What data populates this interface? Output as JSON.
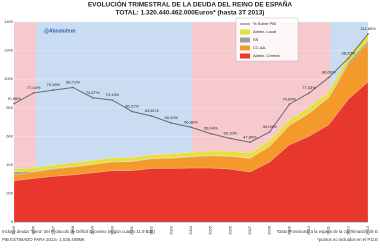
{
  "chart_data": {
    "type": "stacked-area",
    "title": "EVOLUCIÓN TRIMESTRAL DE LA DEUDA DEL REINO DE ESPAÑA",
    "subtitle": "TOTAL: 1.320.440.462.000Euros* (hasta 3T 2013)",
    "watermark": "@Absolutexe",
    "categories": [
      "1995",
      "1996",
      "1997",
      "1998",
      "1999",
      "2000",
      "2001",
      "2002",
      "2003",
      "2004",
      "2005",
      "2006",
      "2007",
      "2008",
      "2009",
      "2010",
      "2011",
      "2012",
      "2013"
    ],
    "series": [
      {
        "name": "Admin. Central",
        "color": "#e8372c",
        "values": [
          290,
          305,
          320,
          330,
          345,
          360,
          360,
          375,
          375,
          378,
          378,
          370,
          350,
          420,
          540,
          600,
          680,
          860,
          980
        ]
      },
      {
        "name": "CC.AA.",
        "color": "#f39a2b",
        "values": [
          40,
          45,
          50,
          55,
          58,
          60,
          63,
          68,
          72,
          78,
          85,
          90,
          95,
          110,
          135,
          160,
          190,
          240,
          270
        ]
      },
      {
        "name": "SS",
        "color": "#9e9e9e",
        "values": [
          20,
          5,
          5,
          4,
          3,
          3,
          3,
          3,
          3,
          3,
          3,
          3,
          3,
          3,
          3,
          3,
          3,
          17,
          17
        ]
      },
      {
        "name": "Admin. Local",
        "color": "#e6e03a",
        "values": [
          22,
          23,
          25,
          25,
          25,
          25,
          25,
          25,
          27,
          28,
          30,
          32,
          33,
          35,
          35,
          37,
          37,
          42,
          42
        ]
      },
      {
        "name": "% Sobre PIB",
        "color": "#6b6b6b",
        "axis": "y2",
        "values": [
          70.96,
          77.44,
          79.15,
          80.71,
          74.57,
          73.13,
          66.31,
          63.61,
          59.42,
          56.86,
          53.04,
          50.1,
          47.85,
          54.04,
          70.6,
          77.33,
          86.66,
          98.2,
          112.85
        ],
        "value_labels": [
          "70,96%",
          "77,44%",
          "79,15%",
          "80,71%",
          "74,57%",
          "73,13%",
          "66,31%",
          "63,61%",
          "59,42%",
          "56,86%",
          "53,04%",
          "50,10%",
          "47,85%",
          "54,04%",
          "70,60%",
          "77,33%",
          "86,66%",
          "98,20%",
          "112,85%"
        ]
      }
    ],
    "ylim": [
      0,
      1400
    ],
    "yticks": [
      0,
      200,
      400,
      600,
      800,
      1000,
      1200,
      1400
    ],
    "y2lim": [
      0,
      120
    ],
    "footnotes": [
      "Incluye deuda \"fuera\" del Protocolo de Déficit Excesivo (según cuadro 11.9 BdE)",
      "PIB ESTIMADO PARA 2013= 1.035.408M€",
      "*Dato Provisional a la espera de la confirmación de E",
      "*puntos no incluidos en el P.D.E"
    ]
  }
}
